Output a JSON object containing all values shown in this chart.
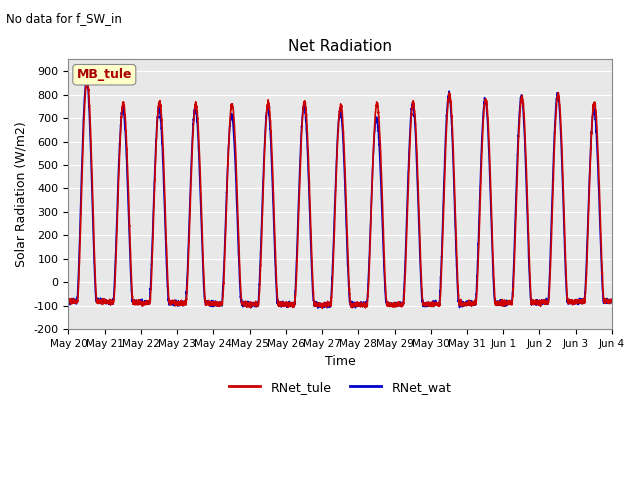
{
  "title": "Net Radiation",
  "subtitle": "No data for f_SW_in",
  "xlabel": "Time",
  "ylabel": "Solar Radiation (W/m2)",
  "ylim": [
    -200,
    950
  ],
  "yticks": [
    -200,
    -100,
    0,
    100,
    200,
    300,
    400,
    500,
    600,
    700,
    800,
    900
  ],
  "color_tule": "#cc0000",
  "color_wat": "#0000cc",
  "legend_label_tule": "RNet_tule",
  "legend_label_wat": "RNet_wat",
  "annotation_text": "MB_tule",
  "annotation_color": "#aa0000",
  "annotation_bg": "#ffffcc",
  "peak_values_tule": [
    860,
    765,
    770,
    760,
    760,
    765,
    770,
    755,
    760,
    765,
    800,
    780,
    790,
    800,
    765
  ],
  "peak_values_wat": [
    860,
    740,
    740,
    740,
    710,
    745,
    750,
    730,
    695,
    760,
    800,
    780,
    790,
    800,
    730
  ],
  "night_value": -80,
  "night_value_mid": -100,
  "n_days": 15,
  "x_tick_labels": [
    "May 20",
    "May 21",
    "May 22",
    "May 23",
    "May 24",
    "May 25",
    "May 26",
    "May 27",
    "May 28",
    "May 29",
    "May 30",
    "May 31",
    "Jun 1",
    "Jun 2",
    "Jun 3",
    "Jun 4"
  ],
  "fig_bg": "#ffffff",
  "plot_bg": "#e8e8e8",
  "linewidth": 1.2
}
